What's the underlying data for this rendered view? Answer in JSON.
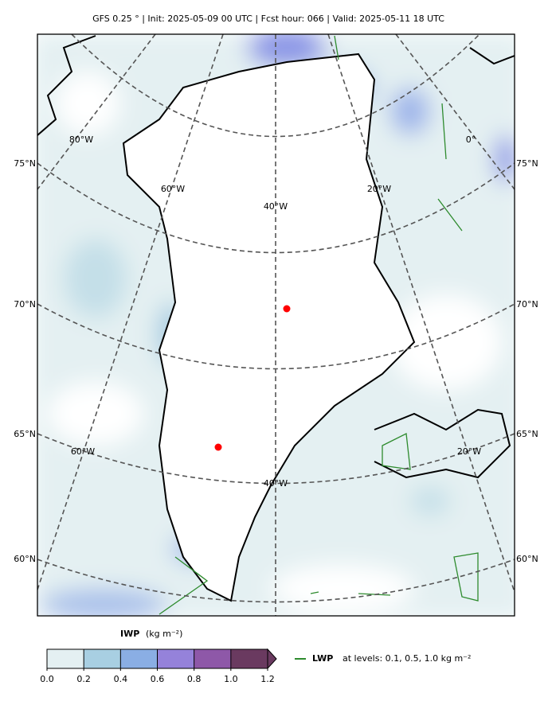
{
  "title": "GFS 0.25 °  |  Init: 2025-05-09 00 UTC  |  Fcst hour: 066  |  Valid: 2025-05-11 18 UTC",
  "map": {
    "lat_labels_left": [
      "75°N",
      "70°N",
      "65°N",
      "60°N"
    ],
    "lat_labels_right": [
      "75°N",
      "70°N",
      "65°N",
      "60°N"
    ],
    "lon_labels": [
      "80°W",
      "0°",
      "60°W",
      "40°W",
      "20°W",
      "60°W",
      "20°W",
      "40°W"
    ]
  },
  "colorbar": {
    "label": "IWP",
    "units": "(kg m⁻²)",
    "lim": [
      0,
      1.2
    ],
    "ticks": [
      {
        "value": 0,
        "label": "0.0"
      },
      0.2,
      0.4,
      0.6,
      0.8,
      {
        "value": 1,
        "label": "1.0"
      },
      1.2
    ],
    "colors": [
      "#e4f0f2",
      "#a8cfe2",
      "#8aaee4",
      "#9582da",
      "#8e58a8",
      "#6a3a60"
    ]
  },
  "legend": {
    "label": "LWP",
    "text": "at levels: 0.1, 0.5, 1.0  kg m⁻²",
    "color": "#2e8b2e"
  }
}
